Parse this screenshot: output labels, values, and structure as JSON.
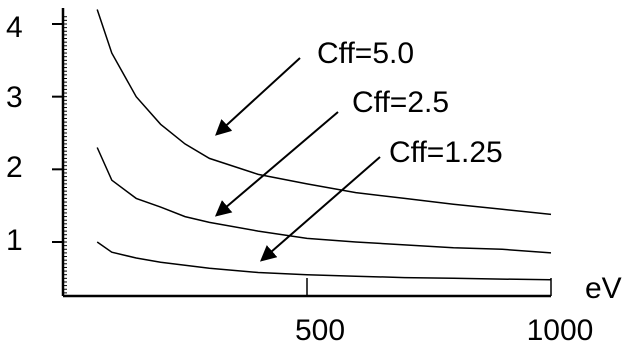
{
  "chart_data": {
    "type": "line",
    "title": "",
    "xlabel": "eV",
    "ylabel": "",
    "xlim": [
      0,
      1000
    ],
    "ylim": [
      0.3,
      4.1
    ],
    "x_ticks": [
      500,
      1000
    ],
    "y_ticks": [
      1,
      2,
      3,
      4
    ],
    "grid": false,
    "series": [
      {
        "name": "Cff=5.0",
        "x": [
          70,
          100,
          150,
          200,
          250,
          300,
          400,
          500,
          600,
          700,
          800,
          900,
          1000
        ],
        "y": [
          4.2,
          3.6,
          3.0,
          2.62,
          2.35,
          2.15,
          1.93,
          1.8,
          1.68,
          1.6,
          1.52,
          1.45,
          1.38
        ]
      },
      {
        "name": "Cff=2.5",
        "x": [
          70,
          100,
          150,
          200,
          250,
          300,
          400,
          500,
          600,
          700,
          800,
          900,
          1000
        ],
        "y": [
          2.3,
          1.85,
          1.6,
          1.48,
          1.35,
          1.27,
          1.15,
          1.05,
          1.0,
          0.96,
          0.92,
          0.9,
          0.85
        ]
      },
      {
        "name": "Cff=1.25",
        "x": [
          70,
          100,
          150,
          200,
          300,
          400,
          500,
          600,
          700,
          800,
          900,
          1000
        ],
        "y": [
          1.0,
          0.86,
          0.78,
          0.72,
          0.64,
          0.58,
          0.55,
          0.53,
          0.51,
          0.5,
          0.49,
          0.48
        ]
      }
    ],
    "annotations": [
      {
        "label": "Cff=5.0",
        "series": "Cff=5.0"
      },
      {
        "label": "Cff=2.5",
        "series": "Cff=2.5"
      },
      {
        "label": "Cff=1.25",
        "series": "Cff=1.25"
      }
    ]
  }
}
